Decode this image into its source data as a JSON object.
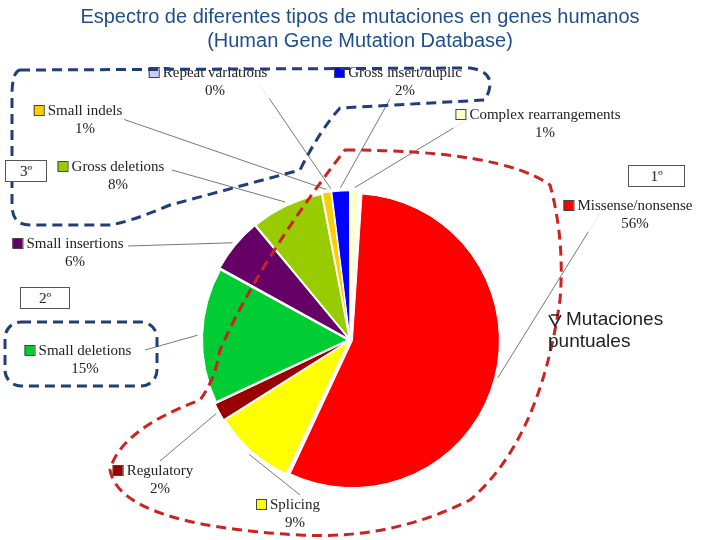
{
  "chart_data": {
    "type": "pie",
    "title": [
      "Espectro de diferentes tipos de mutaciones en genes humanos",
      "(Human Gene Mutation Database)"
    ],
    "categories": [
      "Complex rearrangements",
      "Missense/nonsense",
      "Splicing",
      "Regulatory",
      "Small deletions",
      "Small insertions",
      "Gross deletions",
      "Small indels",
      "Repeat variations",
      "Gross insert/duplic"
    ],
    "values": [
      1,
      56,
      9,
      2,
      15,
      6,
      8,
      1,
      0,
      2
    ],
    "value_labels": [
      "1%",
      "56%",
      "9%",
      "2%",
      "15%",
      "6%",
      "8%",
      "1%",
      "0%",
      "2%"
    ],
    "colors": [
      "#ffffcc",
      "#ff0000",
      "#ffff00",
      "#990000",
      "#00cc33",
      "#660066",
      "#99cc00",
      "#ffcc00",
      "#ccccff",
      "#0000ff"
    ],
    "data_labels": true,
    "annotations": [
      "1º",
      "2º",
      "3º",
      "Mutaciones puntuales"
    ]
  }
}
